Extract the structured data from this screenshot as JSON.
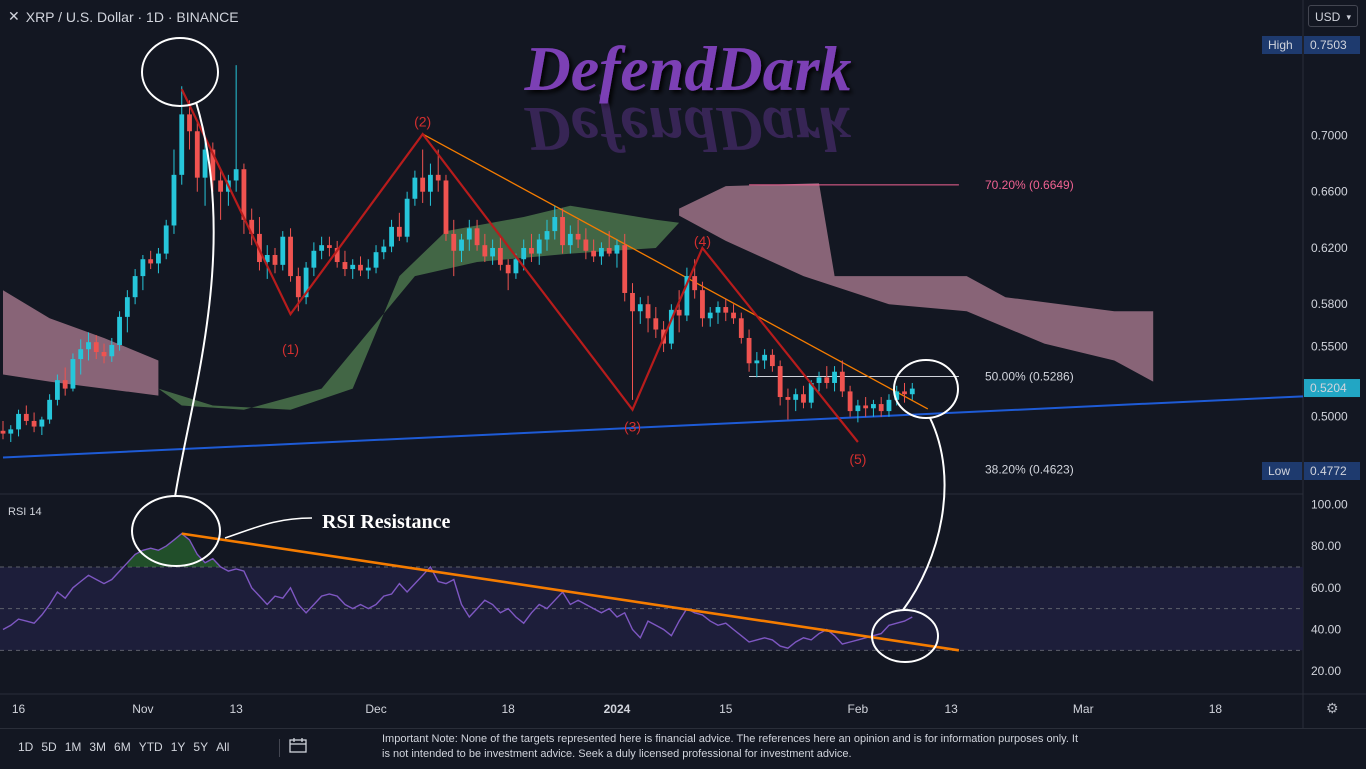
{
  "header": {
    "close_glyph": "✕",
    "symbol": "XRP / U.S. Dollar · 1D · BINANCE"
  },
  "currency": {
    "label": "USD",
    "chevron": "▾"
  },
  "watermark": "DefendDark",
  "colors": {
    "background": "#131722",
    "up": "#26c6da",
    "down": "#ef5350",
    "cloud_bear": "#b07f94",
    "cloud_bull": "#4f7a4f",
    "trendline_orange": "#f57c00",
    "support_blue": "#1e5bd6",
    "wave": "#b71c1c",
    "rsi_line": "#7e57c2",
    "rsi_band": "#1f1f3d",
    "fib_70": "#f06292",
    "fib_50": "#d1d4dc"
  },
  "price_axis": {
    "ticks": [
      "0.7000",
      "0.6600",
      "0.6200",
      "0.5800",
      "0.5500",
      "0.5000"
    ],
    "high_label": "High",
    "high_value": "0.7503",
    "low_label": "Low",
    "low_value": "0.4772",
    "current_value": "0.5204"
  },
  "rsi_axis": {
    "ticks": [
      "100.00",
      "80.00",
      "60.00",
      "40.00",
      "20.00"
    ]
  },
  "time_axis": [
    "16",
    "Nov",
    "13",
    "Dec",
    "18",
    "2024",
    "15",
    "Feb",
    "13",
    "Mar",
    "18"
  ],
  "fibonacci": [
    {
      "label": "70.20% (0.6649)",
      "color": "#f06292"
    },
    {
      "label": "50.00% (0.5286)",
      "color": "#d1d4dc"
    },
    {
      "label": "38.20% (0.4623)",
      "color": "#d1d4dc"
    }
  ],
  "wave_labels": [
    "(1)",
    "(2)",
    "(3)",
    "(4)",
    "(5)"
  ],
  "rsi": {
    "label": "RSI 14",
    "annotation": "RSI Resistance"
  },
  "range_buttons": [
    "1D",
    "5D",
    "1M",
    "3M",
    "6M",
    "YTD",
    "1Y",
    "5Y",
    "All"
  ],
  "icons": {
    "calendar": "calendar-range-icon",
    "settings": "gear-icon"
  },
  "disclaimer": "Important Note: None of the targets represented here is financial advice. The references here an opinion and is for information purposes only. It is not intended to be investment advice. Seek a duly licensed professional for investment advice.",
  "chart_data": [
    {
      "type": "candlestick",
      "title": "XRP / U.S. Dollar · 1D · BINANCE",
      "x_range": [
        "2023-10-14",
        "2024-03-24"
      ],
      "ylim": [
        0.455,
        0.775
      ],
      "candles": [
        [
          "2023-10-14",
          0.49,
          0.497,
          0.484,
          0.488
        ],
        [
          "2023-10-15",
          0.488,
          0.494,
          0.482,
          0.491
        ],
        [
          "2023-10-16",
          0.491,
          0.505,
          0.486,
          0.502
        ],
        [
          "2023-10-17",
          0.502,
          0.508,
          0.494,
          0.497
        ],
        [
          "2023-10-18",
          0.497,
          0.503,
          0.489,
          0.493
        ],
        [
          "2023-10-19",
          0.493,
          0.5,
          0.487,
          0.498
        ],
        [
          "2023-10-20",
          0.498,
          0.516,
          0.495,
          0.512
        ],
        [
          "2023-10-21",
          0.512,
          0.53,
          0.508,
          0.526
        ],
        [
          "2023-10-22",
          0.526,
          0.535,
          0.515,
          0.52
        ],
        [
          "2023-10-23",
          0.52,
          0.545,
          0.518,
          0.541
        ],
        [
          "2023-10-24",
          0.541,
          0.555,
          0.53,
          0.548
        ],
        [
          "2023-10-25",
          0.548,
          0.56,
          0.54,
          0.553
        ],
        [
          "2023-10-26",
          0.553,
          0.558,
          0.541,
          0.546
        ],
        [
          "2023-10-27",
          0.546,
          0.552,
          0.538,
          0.543
        ],
        [
          "2023-10-28",
          0.543,
          0.556,
          0.539,
          0.551
        ],
        [
          "2023-10-29",
          0.551,
          0.575,
          0.547,
          0.571
        ],
        [
          "2023-10-30",
          0.571,
          0.59,
          0.56,
          0.585
        ],
        [
          "2023-10-31",
          0.585,
          0.605,
          0.58,
          0.6
        ],
        [
          "2023-11-01",
          0.6,
          0.615,
          0.59,
          0.612
        ],
        [
          "2023-11-02",
          0.612,
          0.618,
          0.605,
          0.609
        ],
        [
          "2023-11-03",
          0.609,
          0.62,
          0.602,
          0.616
        ],
        [
          "2023-11-04",
          0.616,
          0.64,
          0.612,
          0.636
        ],
        [
          "2023-11-05",
          0.636,
          0.69,
          0.63,
          0.672
        ],
        [
          "2023-11-06",
          0.672,
          0.735,
          0.665,
          0.715
        ],
        [
          "2023-11-07",
          0.715,
          0.725,
          0.69,
          0.703
        ],
        [
          "2023-11-08",
          0.703,
          0.71,
          0.66,
          0.67
        ],
        [
          "2023-11-09",
          0.67,
          0.7,
          0.65,
          0.69
        ],
        [
          "2023-11-10",
          0.69,
          0.695,
          0.66,
          0.668
        ],
        [
          "2023-11-11",
          0.668,
          0.675,
          0.64,
          0.66
        ],
        [
          "2023-11-12",
          0.66,
          0.672,
          0.65,
          0.668
        ],
        [
          "2023-11-13",
          0.668,
          0.75,
          0.66,
          0.676
        ],
        [
          "2023-11-14",
          0.676,
          0.68,
          0.63,
          0.64
        ],
        [
          "2023-11-15",
          0.64,
          0.648,
          0.622,
          0.63
        ],
        [
          "2023-11-16",
          0.63,
          0.642,
          0.604,
          0.61
        ],
        [
          "2023-11-17",
          0.61,
          0.622,
          0.598,
          0.615
        ],
        [
          "2023-11-18",
          0.615,
          0.62,
          0.602,
          0.608
        ],
        [
          "2023-11-19",
          0.608,
          0.632,
          0.604,
          0.628
        ],
        [
          "2023-11-20",
          0.628,
          0.634,
          0.596,
          0.6
        ],
        [
          "2023-11-21",
          0.6,
          0.606,
          0.575,
          0.585
        ],
        [
          "2023-11-22",
          0.585,
          0.61,
          0.58,
          0.606
        ],
        [
          "2023-11-23",
          0.606,
          0.624,
          0.6,
          0.618
        ],
        [
          "2023-11-24",
          0.618,
          0.628,
          0.612,
          0.622
        ],
        [
          "2023-11-25",
          0.622,
          0.628,
          0.614,
          0.62
        ],
        [
          "2023-11-26",
          0.62,
          0.625,
          0.606,
          0.61
        ],
        [
          "2023-11-27",
          0.61,
          0.618,
          0.6,
          0.605
        ],
        [
          "2023-11-28",
          0.605,
          0.612,
          0.598,
          0.608
        ],
        [
          "2023-11-29",
          0.608,
          0.614,
          0.6,
          0.604
        ],
        [
          "2023-11-30",
          0.604,
          0.612,
          0.598,
          0.606
        ],
        [
          "2023-12-01",
          0.606,
          0.622,
          0.602,
          0.617
        ],
        [
          "2023-12-02",
          0.617,
          0.626,
          0.612,
          0.621
        ],
        [
          "2023-12-03",
          0.621,
          0.64,
          0.617,
          0.635
        ],
        [
          "2023-12-04",
          0.635,
          0.645,
          0.625,
          0.628
        ],
        [
          "2023-12-05",
          0.628,
          0.66,
          0.624,
          0.655
        ],
        [
          "2023-12-06",
          0.655,
          0.675,
          0.65,
          0.67
        ],
        [
          "2023-12-07",
          0.67,
          0.69,
          0.652,
          0.66
        ],
        [
          "2023-12-08",
          0.66,
          0.68,
          0.65,
          0.672
        ],
        [
          "2023-12-09",
          0.672,
          0.69,
          0.66,
          0.668
        ],
        [
          "2023-12-10",
          0.668,
          0.672,
          0.625,
          0.63
        ],
        [
          "2023-12-11",
          0.63,
          0.64,
          0.6,
          0.618
        ],
        [
          "2023-12-12",
          0.618,
          0.63,
          0.61,
          0.626
        ],
        [
          "2023-12-13",
          0.626,
          0.64,
          0.618,
          0.634
        ],
        [
          "2023-12-14",
          0.634,
          0.64,
          0.618,
          0.622
        ],
        [
          "2023-12-15",
          0.622,
          0.63,
          0.61,
          0.614
        ],
        [
          "2023-12-16",
          0.614,
          0.626,
          0.608,
          0.62
        ],
        [
          "2023-12-17",
          0.62,
          0.628,
          0.604,
          0.608
        ],
        [
          "2023-12-18",
          0.608,
          0.612,
          0.59,
          0.602
        ],
        [
          "2023-12-19",
          0.602,
          0.616,
          0.598,
          0.612
        ],
        [
          "2023-12-20",
          0.612,
          0.626,
          0.604,
          0.62
        ],
        [
          "2023-12-21",
          0.62,
          0.63,
          0.61,
          0.616
        ],
        [
          "2023-12-22",
          0.616,
          0.63,
          0.608,
          0.626
        ],
        [
          "2023-12-23",
          0.626,
          0.64,
          0.618,
          0.632
        ],
        [
          "2023-12-24",
          0.632,
          0.65,
          0.626,
          0.642
        ],
        [
          "2023-12-25",
          0.642,
          0.648,
          0.616,
          0.622
        ],
        [
          "2023-12-26",
          0.622,
          0.636,
          0.616,
          0.63
        ],
        [
          "2023-12-27",
          0.63,
          0.64,
          0.62,
          0.626
        ],
        [
          "2023-12-28",
          0.626,
          0.634,
          0.612,
          0.618
        ],
        [
          "2023-12-29",
          0.618,
          0.626,
          0.61,
          0.614
        ],
        [
          "2023-12-30",
          0.614,
          0.624,
          0.608,
          0.62
        ],
        [
          "2023-12-31",
          0.62,
          0.632,
          0.614,
          0.616
        ],
        [
          "2024-01-01",
          0.616,
          0.626,
          0.606,
          0.622
        ],
        [
          "2024-01-02",
          0.622,
          0.63,
          0.582,
          0.588
        ],
        [
          "2024-01-03",
          0.588,
          0.595,
          0.512,
          0.575
        ],
        [
          "2024-01-04",
          0.575,
          0.585,
          0.566,
          0.58
        ],
        [
          "2024-01-05",
          0.58,
          0.586,
          0.56,
          0.57
        ],
        [
          "2024-01-06",
          0.57,
          0.578,
          0.556,
          0.562
        ],
        [
          "2024-01-07",
          0.562,
          0.568,
          0.546,
          0.552
        ],
        [
          "2024-01-08",
          0.552,
          0.58,
          0.548,
          0.576
        ],
        [
          "2024-01-09",
          0.576,
          0.59,
          0.56,
          0.572
        ],
        [
          "2024-01-10",
          0.572,
          0.606,
          0.568,
          0.6
        ],
        [
          "2024-01-11",
          0.6,
          0.612,
          0.584,
          0.59
        ],
        [
          "2024-01-12",
          0.59,
          0.596,
          0.564,
          0.57
        ],
        [
          "2024-01-13",
          0.57,
          0.578,
          0.564,
          0.574
        ],
        [
          "2024-01-14",
          0.574,
          0.582,
          0.566,
          0.578
        ],
        [
          "2024-01-15",
          0.578,
          0.584,
          0.568,
          0.574
        ],
        [
          "2024-01-16",
          0.574,
          0.58,
          0.566,
          0.57
        ],
        [
          "2024-01-17",
          0.57,
          0.574,
          0.552,
          0.556
        ],
        [
          "2024-01-18",
          0.556,
          0.562,
          0.532,
          0.538
        ],
        [
          "2024-01-19",
          0.538,
          0.546,
          0.528,
          0.54
        ],
        [
          "2024-01-20",
          0.54,
          0.548,
          0.534,
          0.544
        ],
        [
          "2024-01-21",
          0.544,
          0.548,
          0.532,
          0.536
        ],
        [
          "2024-01-22",
          0.536,
          0.54,
          0.508,
          0.514
        ],
        [
          "2024-01-23",
          0.514,
          0.52,
          0.498,
          0.512
        ],
        [
          "2024-01-24",
          0.512,
          0.52,
          0.504,
          0.516
        ],
        [
          "2024-01-25",
          0.516,
          0.522,
          0.506,
          0.51
        ],
        [
          "2024-01-26",
          0.51,
          0.526,
          0.506,
          0.524
        ],
        [
          "2024-01-27",
          0.524,
          0.532,
          0.518,
          0.528
        ],
        [
          "2024-01-28",
          0.528,
          0.536,
          0.52,
          0.524
        ],
        [
          "2024-01-29",
          0.524,
          0.536,
          0.518,
          0.532
        ],
        [
          "2024-01-30",
          0.532,
          0.54,
          0.514,
          0.518
        ],
        [
          "2024-01-31",
          0.518,
          0.522,
          0.5,
          0.504
        ],
        [
          "2024-02-01",
          0.504,
          0.512,
          0.496,
          0.508
        ],
        [
          "2024-02-02",
          0.508,
          0.514,
          0.5,
          0.506
        ],
        [
          "2024-02-03",
          0.506,
          0.512,
          0.5,
          0.509
        ],
        [
          "2024-02-04",
          0.509,
          0.514,
          0.5,
          0.504
        ],
        [
          "2024-02-05",
          0.504,
          0.516,
          0.5,
          0.512
        ],
        [
          "2024-02-06",
          0.512,
          0.522,
          0.508,
          0.518
        ],
        [
          "2024-02-07",
          0.518,
          0.524,
          0.51,
          0.516
        ],
        [
          "2024-02-08",
          0.516,
          0.524,
          0.512,
          0.52
        ]
      ]
    },
    {
      "type": "line",
      "title": "RSI 14",
      "ylim": [
        10,
        105
      ],
      "reference_lines": [
        70,
        50,
        30
      ],
      "series": [
        {
          "name": "RSI 14",
          "x_start": "2023-10-14",
          "values": [
            40,
            42,
            45,
            44,
            43,
            47,
            52,
            58,
            55,
            60,
            63,
            66,
            64,
            62,
            64,
            68,
            72,
            76,
            78,
            79,
            78,
            80,
            83,
            86,
            83,
            76,
            72,
            74,
            70,
            68,
            69,
            68,
            60,
            56,
            52,
            56,
            55,
            60,
            52,
            48,
            52,
            56,
            57,
            56,
            52,
            50,
            52,
            50,
            52,
            56,
            57,
            62,
            58,
            62,
            66,
            70,
            63,
            62,
            64,
            52,
            46,
            50,
            54,
            52,
            48,
            50,
            46,
            43,
            48,
            52,
            50,
            54,
            58,
            52,
            54,
            52,
            50,
            48,
            50,
            46,
            48,
            40,
            36,
            44,
            42,
            40,
            37,
            44,
            50,
            48,
            47,
            44,
            42,
            43,
            40,
            37,
            34,
            35,
            36,
            35,
            32,
            31,
            34,
            36,
            35,
            38,
            40,
            37,
            33,
            34,
            35,
            36,
            37,
            38,
            42,
            43,
            44,
            46
          ]
        }
      ]
    }
  ]
}
